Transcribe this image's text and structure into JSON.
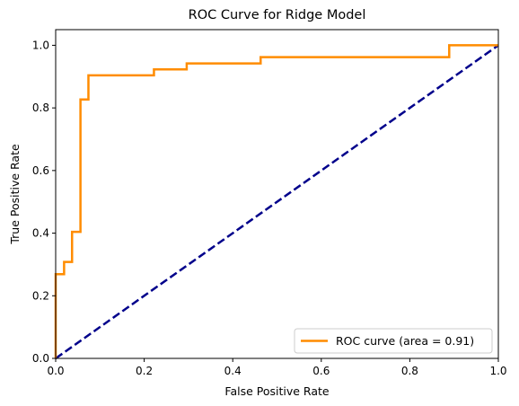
{
  "chart_data": {
    "type": "line",
    "title": "ROC Curve for Ridge Model",
    "xlabel": "False Positive Rate",
    "ylabel": "True Positive Rate",
    "xlim": [
      0.0,
      1.0
    ],
    "ylim": [
      0.0,
      1.05
    ],
    "x_ticks": [
      0.0,
      0.2,
      0.4,
      0.6,
      0.8,
      1.0
    ],
    "x_tick_labels": [
      "0.0",
      "0.2",
      "0.4",
      "0.6",
      "0.8",
      "1.0"
    ],
    "y_ticks": [
      0.0,
      0.2,
      0.4,
      0.6,
      0.8,
      1.0
    ],
    "y_tick_labels": [
      "0.0",
      "0.2",
      "0.4",
      "0.6",
      "0.8",
      "1.0"
    ],
    "grid": false,
    "legend_position": "lower-right",
    "series": [
      {
        "name": "ROC curve (area = 0.91)",
        "color": "#ff8c00",
        "style": "solid",
        "x": [
          0.0,
          0.0,
          0.019,
          0.019,
          0.037,
          0.037,
          0.056,
          0.056,
          0.074,
          0.074,
          0.222,
          0.222,
          0.296,
          0.296,
          0.463,
          0.463,
          0.889,
          0.889,
          1.0
        ],
        "y": [
          0.0,
          0.269,
          0.269,
          0.308,
          0.308,
          0.404,
          0.404,
          0.827,
          0.827,
          0.904,
          0.904,
          0.923,
          0.923,
          0.942,
          0.942,
          0.962,
          0.962,
          1.0,
          1.0
        ]
      },
      {
        "color": "#00008b",
        "style": "dashed",
        "x": [
          0.0,
          1.0
        ],
        "y": [
          0.0,
          1.0
        ]
      }
    ]
  }
}
